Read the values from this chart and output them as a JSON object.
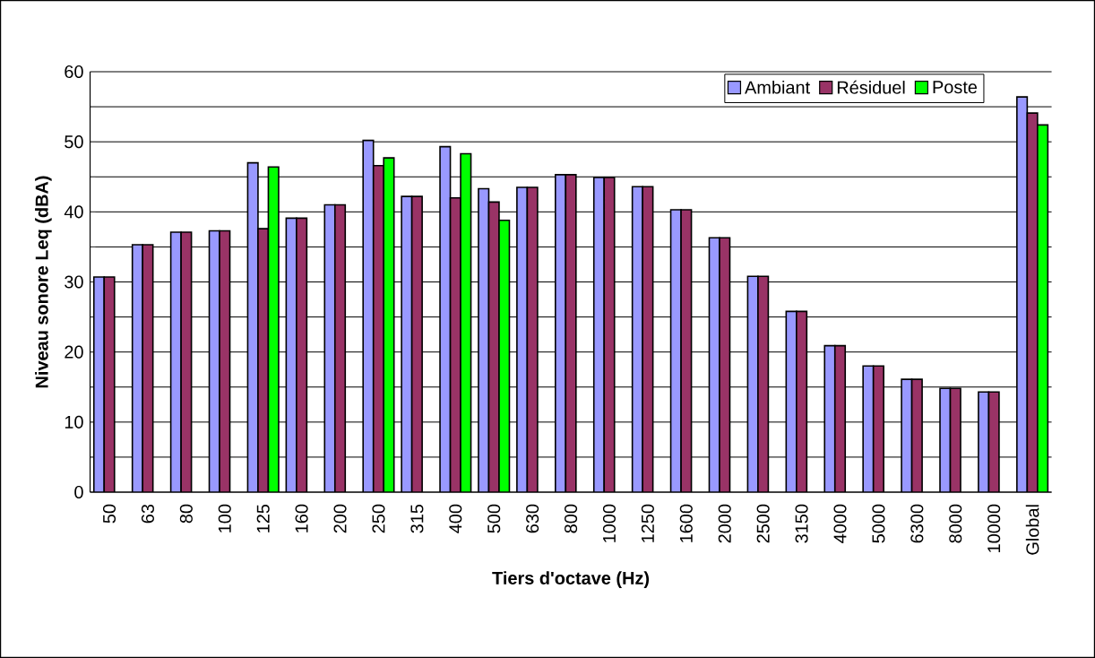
{
  "chart_data": {
    "type": "bar",
    "xlabel": "Tiers d'octave (Hz)",
    "ylabel": "Niveau sonore Leq (dBA)",
    "categories": [
      "50",
      "63",
      "80",
      "100",
      "125",
      "160",
      "200",
      "250",
      "315",
      "400",
      "500",
      "630",
      "800",
      "1000",
      "1250",
      "1600",
      "2000",
      "2500",
      "3150",
      "4000",
      "5000",
      "6300",
      "8000",
      "10000",
      "Global"
    ],
    "series": [
      {
        "name": "Ambiant",
        "color": "#9999ff",
        "values": [
          30.7,
          35.3,
          37.1,
          37.3,
          47.0,
          39.1,
          41.0,
          50.2,
          42.2,
          49.3,
          43.3,
          43.5,
          45.3,
          44.9,
          43.6,
          40.3,
          36.3,
          30.8,
          25.8,
          20.9,
          18.0,
          16.1,
          14.8,
          14.3,
          56.4
        ]
      },
      {
        "name": "Résiduel",
        "color": "#993366",
        "values": [
          30.7,
          35.3,
          37.1,
          37.3,
          37.6,
          39.1,
          41.0,
          46.6,
          42.2,
          42.0,
          41.4,
          43.5,
          45.3,
          44.9,
          43.6,
          40.3,
          36.3,
          30.8,
          25.8,
          20.9,
          18.0,
          16.1,
          14.8,
          14.3,
          54.1
        ]
      },
      {
        "name": "Poste",
        "color": "#00ff00",
        "values": [
          null,
          null,
          null,
          null,
          46.4,
          null,
          null,
          47.7,
          null,
          48.3,
          38.8,
          null,
          null,
          null,
          null,
          null,
          null,
          null,
          null,
          null,
          null,
          null,
          null,
          null,
          52.4
        ]
      }
    ],
    "ylim": [
      0,
      60
    ],
    "yticks": [
      0,
      {
        "value": 5,
        "label": null
      },
      10,
      {
        "value": 15,
        "label": null
      },
      20,
      {
        "value": 25,
        "label": null
      },
      30,
      {
        "value": 35,
        "label": null
      },
      40,
      {
        "value": 45,
        "label": null
      },
      50,
      {
        "value": 55,
        "label": null
      },
      60
    ],
    "grid": "y",
    "legend": "top right"
  }
}
